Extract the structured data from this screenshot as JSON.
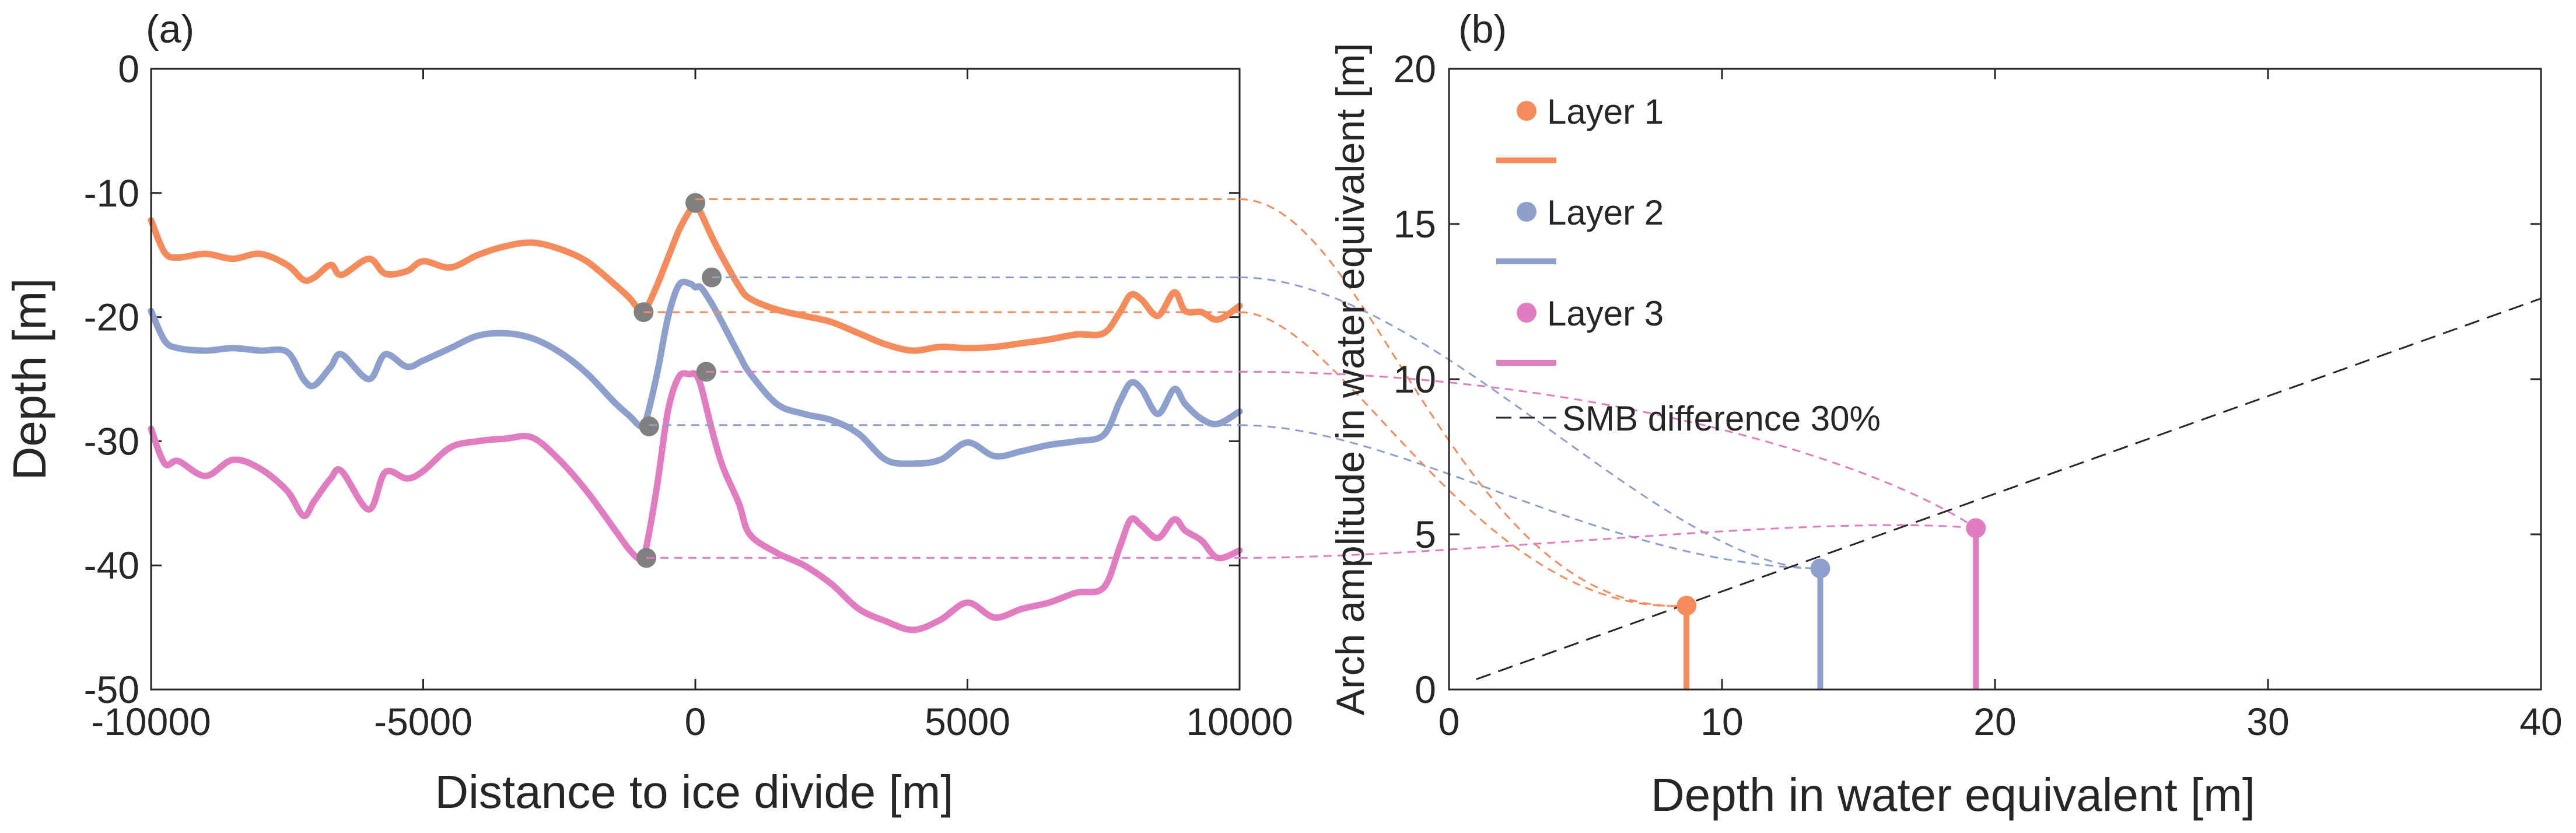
{
  "colors": {
    "layer1": "#F58A5A",
    "layer2": "#8C9FCD",
    "layer3": "#E27CC0",
    "marker_grey": "#808080",
    "reference_line": "#262626",
    "axis": "#262626"
  },
  "chart_data": [
    {
      "type": "line",
      "panel_label": "(a)",
      "xlabel": "Distance to ice divide [m]",
      "ylabel": "Depth [m]",
      "xlim": [
        -10000,
        10000
      ],
      "ylim": [
        -50,
        0
      ],
      "xticks": [
        -10000,
        -5000,
        0,
        5000,
        10000
      ],
      "xtick_labels": [
        "-10000",
        "-5000",
        "0",
        "5000",
        "10000"
      ],
      "yticks": [
        0,
        -10,
        -20,
        -30,
        -40,
        -50
      ],
      "ytick_labels": [
        "0",
        "-10",
        "-20",
        "-30",
        "-40",
        "-50"
      ],
      "grid": false,
      "x": [
        -10000,
        -9750,
        -9500,
        -9000,
        -8500,
        -8000,
        -7500,
        -7200,
        -7000,
        -6700,
        -6500,
        -6000,
        -5700,
        -5300,
        -5000,
        -4500,
        -4000,
        -3500,
        -3000,
        -2500,
        -2000,
        -1500,
        -1200,
        -1000,
        -900,
        -700,
        -500,
        -300,
        -100,
        0,
        100,
        300,
        500,
        800,
        1000,
        1500,
        2000,
        2500,
        3000,
        3500,
        4000,
        4500,
        5000,
        5500,
        6000,
        6500,
        7000,
        7500,
        7800,
        8000,
        8200,
        8500,
        8800,
        9000,
        9300,
        9600,
        10000
      ],
      "series": [
        {
          "name": "Layer 1",
          "values": [
            -12.2,
            -14.8,
            -15.2,
            -14.9,
            -15.3,
            -14.9,
            -15.8,
            -17.0,
            -16.8,
            -15.8,
            -16.6,
            -15.3,
            -16.5,
            -16.3,
            -15.5,
            -16.0,
            -15.0,
            -14.3,
            -14.0,
            -14.5,
            -15.5,
            -17.3,
            -18.5,
            -19.6,
            -19.3,
            -17.4,
            -15.2,
            -13.0,
            -11.4,
            -10.9,
            -11.6,
            -13.5,
            -15.2,
            -17.5,
            -18.5,
            -19.4,
            -19.9,
            -20.4,
            -21.3,
            -22.2,
            -22.7,
            -22.4,
            -22.5,
            -22.4,
            -22.1,
            -21.8,
            -21.4,
            -21.3,
            -19.6,
            -18.2,
            -18.6,
            -19.9,
            -18.0,
            -19.5,
            -19.6,
            -20.2,
            -19.1
          ]
        },
        {
          "name": "Layer 2",
          "values": [
            -19.5,
            -21.9,
            -22.5,
            -22.7,
            -22.5,
            -22.7,
            -22.8,
            -25.0,
            -25.5,
            -24.0,
            -23.0,
            -25.0,
            -23.0,
            -24.0,
            -23.5,
            -22.5,
            -21.5,
            -21.3,
            -21.7,
            -22.8,
            -24.5,
            -26.8,
            -28.0,
            -28.8,
            -28.2,
            -24.5,
            -20.0,
            -17.4,
            -17.3,
            -17.6,
            -17.6,
            -18.9,
            -20.5,
            -23.0,
            -24.5,
            -27.0,
            -27.8,
            -28.3,
            -29.4,
            -31.5,
            -31.8,
            -31.5,
            -30.1,
            -31.2,
            -30.8,
            -30.3,
            -30.0,
            -29.5,
            -26.8,
            -25.3,
            -25.8,
            -27.8,
            -25.8,
            -27.0,
            -28.2,
            -28.6,
            -27.6
          ]
        },
        {
          "name": "Layer 3",
          "values": [
            -29.0,
            -31.8,
            -31.6,
            -32.8,
            -31.5,
            -32.2,
            -34.0,
            -36.0,
            -34.8,
            -33.0,
            -32.4,
            -35.5,
            -32.5,
            -33.0,
            -32.4,
            -30.5,
            -30.0,
            -29.8,
            -29.7,
            -31.5,
            -34.0,
            -37.0,
            -38.8,
            -39.5,
            -38.5,
            -33.5,
            -27.5,
            -24.8,
            -24.6,
            -24.6,
            -25.5,
            -29.0,
            -32.0,
            -35.0,
            -37.5,
            -39.0,
            -40.0,
            -41.5,
            -43.5,
            -44.5,
            -45.2,
            -44.4,
            -43.0,
            -44.2,
            -43.5,
            -43.0,
            -42.2,
            -41.8,
            -38.5,
            -36.3,
            -36.8,
            -37.8,
            -36.3,
            -37.2,
            -38.0,
            -39.4,
            -38.8
          ]
        }
      ],
      "markers": [
        {
          "x": 0,
          "y": -10.8
        },
        {
          "x": -950,
          "y": -19.6
        },
        {
          "x": 300,
          "y": -16.8
        },
        {
          "x": -850,
          "y": -28.8
        },
        {
          "x": 200,
          "y": -24.4
        },
        {
          "x": -900,
          "y": -39.4
        }
      ],
      "reference_levels": [
        {
          "layer": "Layer 1",
          "y": -10.5
        },
        {
          "layer": "Layer 1",
          "y": -19.6
        },
        {
          "layer": "Layer 2",
          "y": -16.8
        },
        {
          "layer": "Layer 2",
          "y": -28.7
        },
        {
          "layer": "Layer 3",
          "y": -24.4
        },
        {
          "layer": "Layer 3",
          "y": -39.4
        }
      ]
    },
    {
      "type": "scatter",
      "panel_label": "(b)",
      "xlabel": "Depth in water equivalent [m]",
      "ylabel": "Arch amplitude in water equivalent [m]",
      "xlim": [
        0,
        40
      ],
      "ylim": [
        0,
        20
      ],
      "xticks": [
        0,
        10,
        20,
        30,
        40
      ],
      "xtick_labels": [
        "0",
        "10",
        "20",
        "30",
        "40"
      ],
      "yticks": [
        0,
        5,
        10,
        15,
        20
      ],
      "ytick_labels": [
        "0",
        "5",
        "10",
        "15",
        "20"
      ],
      "grid": false,
      "legend_position": "top-left",
      "series": [
        {
          "name": "Layer 1",
          "x": 8.7,
          "y": 2.7
        },
        {
          "name": "Layer 2",
          "x": 13.6,
          "y": 3.9
        },
        {
          "name": "Layer 3",
          "x": 19.3,
          "y": 5.2
        }
      ],
      "reference_line": {
        "name": "SMB difference 30%",
        "x": [
          1,
          40
        ],
        "y": [
          0.33,
          12.6
        ]
      },
      "legend": [
        {
          "label": "Layer 1",
          "kind": "marker",
          "series": "Layer 1"
        },
        {
          "label": "",
          "kind": "line",
          "series": "Layer 1"
        },
        {
          "label": "Layer 2",
          "kind": "marker",
          "series": "Layer 2"
        },
        {
          "label": "",
          "kind": "line",
          "series": "Layer 2"
        },
        {
          "label": "Layer 3",
          "kind": "marker",
          "series": "Layer 3"
        },
        {
          "label": "",
          "kind": "line",
          "series": "Layer 3"
        },
        {
          "label": "SMB difference 30%",
          "kind": "dashed",
          "series": "reference"
        }
      ]
    }
  ]
}
